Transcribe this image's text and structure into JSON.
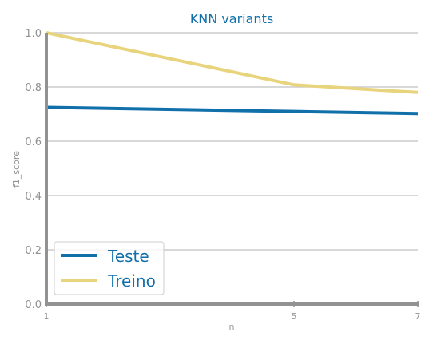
{
  "chart_data": {
    "type": "line",
    "title": "KNN variants",
    "xlabel": "n",
    "ylabel": "f1_score",
    "x": [
      1,
      5,
      7
    ],
    "xlim": [
      1,
      7
    ],
    "ylim": [
      0,
      1
    ],
    "yticks": [
      "0.0",
      "0.2",
      "0.4",
      "0.6",
      "0.8",
      "1.0"
    ],
    "xticks": [
      "1",
      "5",
      "7"
    ],
    "grid": "horizontal",
    "legend_position": "bottom-left",
    "series": [
      {
        "name": "Teste",
        "values": [
          0.725,
          0.71,
          0.702
        ],
        "color": "#1170aa"
      },
      {
        "name": "Treino",
        "values": [
          1.0,
          0.808,
          0.78
        ],
        "color": "#e8d47c"
      }
    ],
    "colors": {
      "title": "#1170aa",
      "axis": "#929292",
      "grid": "#cccccc",
      "tick_text": "#929292",
      "legend_text": "#1170aa",
      "legend_border": "#cccccc"
    }
  }
}
